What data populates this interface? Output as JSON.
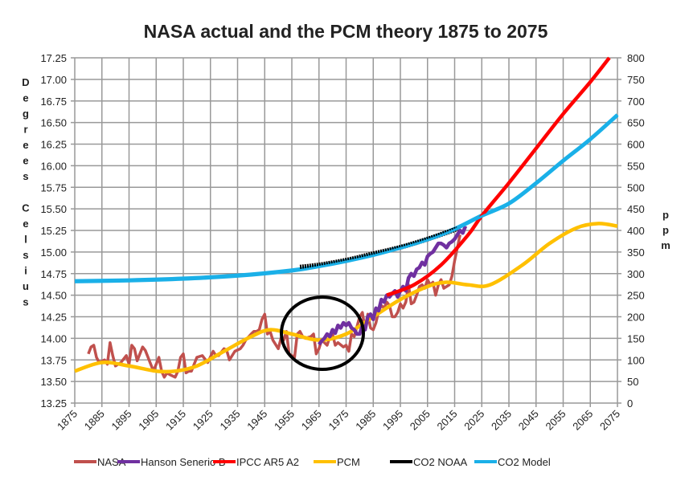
{
  "chart_data": {
    "type": "line",
    "title": "NASA actual and the PCM theory 1875 to 2075",
    "ylabel_left": "Degrees Celsius",
    "ylabel_right": "ppm",
    "xlim": [
      1875,
      2075
    ],
    "ylim_left": [
      13.25,
      17.25
    ],
    "ylim_right": [
      0,
      800
    ],
    "grid": true,
    "legend_position": "bottom",
    "x_ticks": [
      "1875",
      "1885",
      "1895",
      "1905",
      "1915",
      "1925",
      "1935",
      "1945",
      "1955",
      "1965",
      "1975",
      "1985",
      "1995",
      "2005",
      "2015",
      "2025",
      "2035",
      "2045",
      "2055",
      "2065",
      "2075"
    ],
    "y_left_ticks": [
      "17.25",
      "17.00",
      "16.75",
      "16.50",
      "16.25",
      "16.00",
      "15.75",
      "15.50",
      "15.25",
      "15.00",
      "14.75",
      "14.50",
      "14.25",
      "14.00",
      "13.75",
      "13.50",
      "13.25"
    ],
    "y_right_ticks": [
      "800",
      "750",
      "700",
      "650",
      "600",
      "550",
      "500",
      "450",
      "400",
      "350",
      "300",
      "250",
      "200",
      "150",
      "100",
      "50",
      "0"
    ],
    "series": [
      {
        "name": "NASA",
        "axis": "left",
        "color": "#c0504d",
        "smooth": false,
        "x": [
          1880,
          1881,
          1882,
          1883,
          1884,
          1886,
          1887,
          1888,
          1889,
          1890,
          1892,
          1894,
          1895,
          1896,
          1897,
          1898,
          1900,
          1901,
          1902,
          1904,
          1905,
          1906,
          1907,
          1908,
          1909,
          1910,
          1912,
          1913,
          1914,
          1915,
          1916,
          1917,
          1918,
          1920,
          1922,
          1924,
          1926,
          1927,
          1928,
          1930,
          1931,
          1932,
          1934,
          1936,
          1937,
          1938,
          1940,
          1941,
          1942,
          1943,
          1944,
          1945,
          1946,
          1947,
          1948,
          1950,
          1951,
          1952,
          1953,
          1954,
          1956,
          1957,
          1958,
          1959,
          1960,
          1962,
          1963,
          1964,
          1965,
          1966,
          1968,
          1969,
          1970,
          1971,
          1972,
          1974,
          1975,
          1976,
          1977,
          1978,
          1980,
          1981,
          1982,
          1983,
          1984,
          1985,
          1986,
          1987,
          1988,
          1989,
          1990,
          1991,
          1992,
          1993,
          1994,
          1995,
          1996,
          1997,
          1998,
          1999,
          2000,
          2001,
          2002,
          2003,
          2004,
          2005,
          2006,
          2007,
          2008,
          2009,
          2010,
          2011,
          2012,
          2013,
          2014,
          2015,
          2016,
          2017
        ],
        "y": [
          13.82,
          13.9,
          13.92,
          13.78,
          13.72,
          13.75,
          13.7,
          13.95,
          13.8,
          13.68,
          13.72,
          13.8,
          13.7,
          13.92,
          13.88,
          13.74,
          13.9,
          13.86,
          13.78,
          13.62,
          13.7,
          13.78,
          13.62,
          13.55,
          13.6,
          13.58,
          13.55,
          13.62,
          13.78,
          13.82,
          13.6,
          13.62,
          13.62,
          13.78,
          13.8,
          13.72,
          13.85,
          13.8,
          13.8,
          13.88,
          13.86,
          13.75,
          13.85,
          13.88,
          13.92,
          13.98,
          14.05,
          14.08,
          14.08,
          14.1,
          14.22,
          14.28,
          14.05,
          14.08,
          13.98,
          13.88,
          14.0,
          13.98,
          14.08,
          13.82,
          13.78,
          14.05,
          14.08,
          14.02,
          14.0,
          14.02,
          14.05,
          13.82,
          13.88,
          13.98,
          13.92,
          14.02,
          14.05,
          13.92,
          13.95,
          13.9,
          13.92,
          13.85,
          14.05,
          14.02,
          14.25,
          14.3,
          14.1,
          14.28,
          14.12,
          14.1,
          14.18,
          14.32,
          14.38,
          14.35,
          14.42,
          14.38,
          14.25,
          14.25,
          14.3,
          14.4,
          14.35,
          14.42,
          14.62,
          14.4,
          14.42,
          14.5,
          14.6,
          14.62,
          14.58,
          14.68,
          14.62,
          14.65,
          14.5,
          14.62,
          14.68,
          14.58,
          14.6,
          14.62,
          14.72,
          14.9,
          15.05,
          15.2
        ]
      },
      {
        "name": "Hanson Senerio B",
        "axis": "left",
        "color": "#7030a0",
        "smooth": false,
        "x": [
          1965,
          1966,
          1967,
          1968,
          1969,
          1970,
          1971,
          1972,
          1973,
          1974,
          1975,
          1976,
          1977,
          1978,
          1979,
          1980,
          1981,
          1982,
          1983,
          1984,
          1985,
          1986,
          1987,
          1988,
          1989,
          1990,
          1991,
          1992,
          1993,
          1994,
          1995,
          1996,
          1997,
          1998,
          1999,
          2000,
          2001,
          2002,
          2003,
          2004,
          2005,
          2006,
          2007,
          2008,
          2009,
          2010,
          2011,
          2012,
          2013,
          2014,
          2015,
          2016,
          2017,
          2018,
          2019
        ],
        "y": [
          13.93,
          13.97,
          14.0,
          14.05,
          14.02,
          14.1,
          14.06,
          14.15,
          14.12,
          14.18,
          14.15,
          14.18,
          14.12,
          14.1,
          14.05,
          14.05,
          14.15,
          14.1,
          14.25,
          14.28,
          14.22,
          14.35,
          14.32,
          14.45,
          14.42,
          14.5,
          14.48,
          14.52,
          14.55,
          14.48,
          14.55,
          14.6,
          14.55,
          14.7,
          14.75,
          14.72,
          14.8,
          14.82,
          14.88,
          14.85,
          14.95,
          14.98,
          15.0,
          15.05,
          15.1,
          15.1,
          15.08,
          15.05,
          15.1,
          15.12,
          15.15,
          15.2,
          15.25,
          15.22,
          15.3
        ]
      },
      {
        "name": "IPCC AR5 A2",
        "axis": "left",
        "color": "#ff0000",
        "smooth": true,
        "x": [
          1990,
          2000,
          2010,
          2020,
          2025,
          2035,
          2045,
          2055,
          2065,
          2072
        ],
        "y": [
          14.5,
          14.62,
          14.85,
          15.2,
          15.42,
          15.8,
          16.2,
          16.6,
          16.97,
          17.25
        ]
      },
      {
        "name": "PCM",
        "axis": "left",
        "color": "#ffc000",
        "smooth": true,
        "x": [
          1875,
          1885,
          1895,
          1905,
          1912,
          1920,
          1930,
          1940,
          1947,
          1955,
          1965,
          1975,
          1985,
          1995,
          2005,
          2012,
          2020,
          2028,
          2040,
          2050,
          2060,
          2068,
          2075
        ],
        "y": [
          13.62,
          13.72,
          13.68,
          13.62,
          13.62,
          13.68,
          13.85,
          14.02,
          14.1,
          14.05,
          13.98,
          14.05,
          14.25,
          14.45,
          14.6,
          14.65,
          14.62,
          14.62,
          14.85,
          15.1,
          15.28,
          15.33,
          15.3
        ]
      },
      {
        "name": "CO2 NOAA",
        "axis": "right",
        "color": "#000000",
        "smooth": true,
        "x": [
          1958,
          1965,
          1975,
          1985,
          1995,
          2005,
          2016
        ],
        "y": [
          315,
          320,
          331,
          346,
          361,
          380,
          404
        ]
      },
      {
        "name": "CO2 Model",
        "axis": "right",
        "color": "#1ab0e8",
        "smooth": true,
        "x": [
          1875,
          1895,
          1915,
          1935,
          1955,
          1965,
          1975,
          1985,
          1995,
          2005,
          2015,
          2025,
          2035,
          2045,
          2055,
          2065,
          2075
        ],
        "y": [
          283,
          285,
          289,
          296,
          308,
          318,
          330,
          344,
          361,
          380,
          404,
          435,
          463,
          510,
          562,
          612,
          668
        ]
      }
    ]
  }
}
